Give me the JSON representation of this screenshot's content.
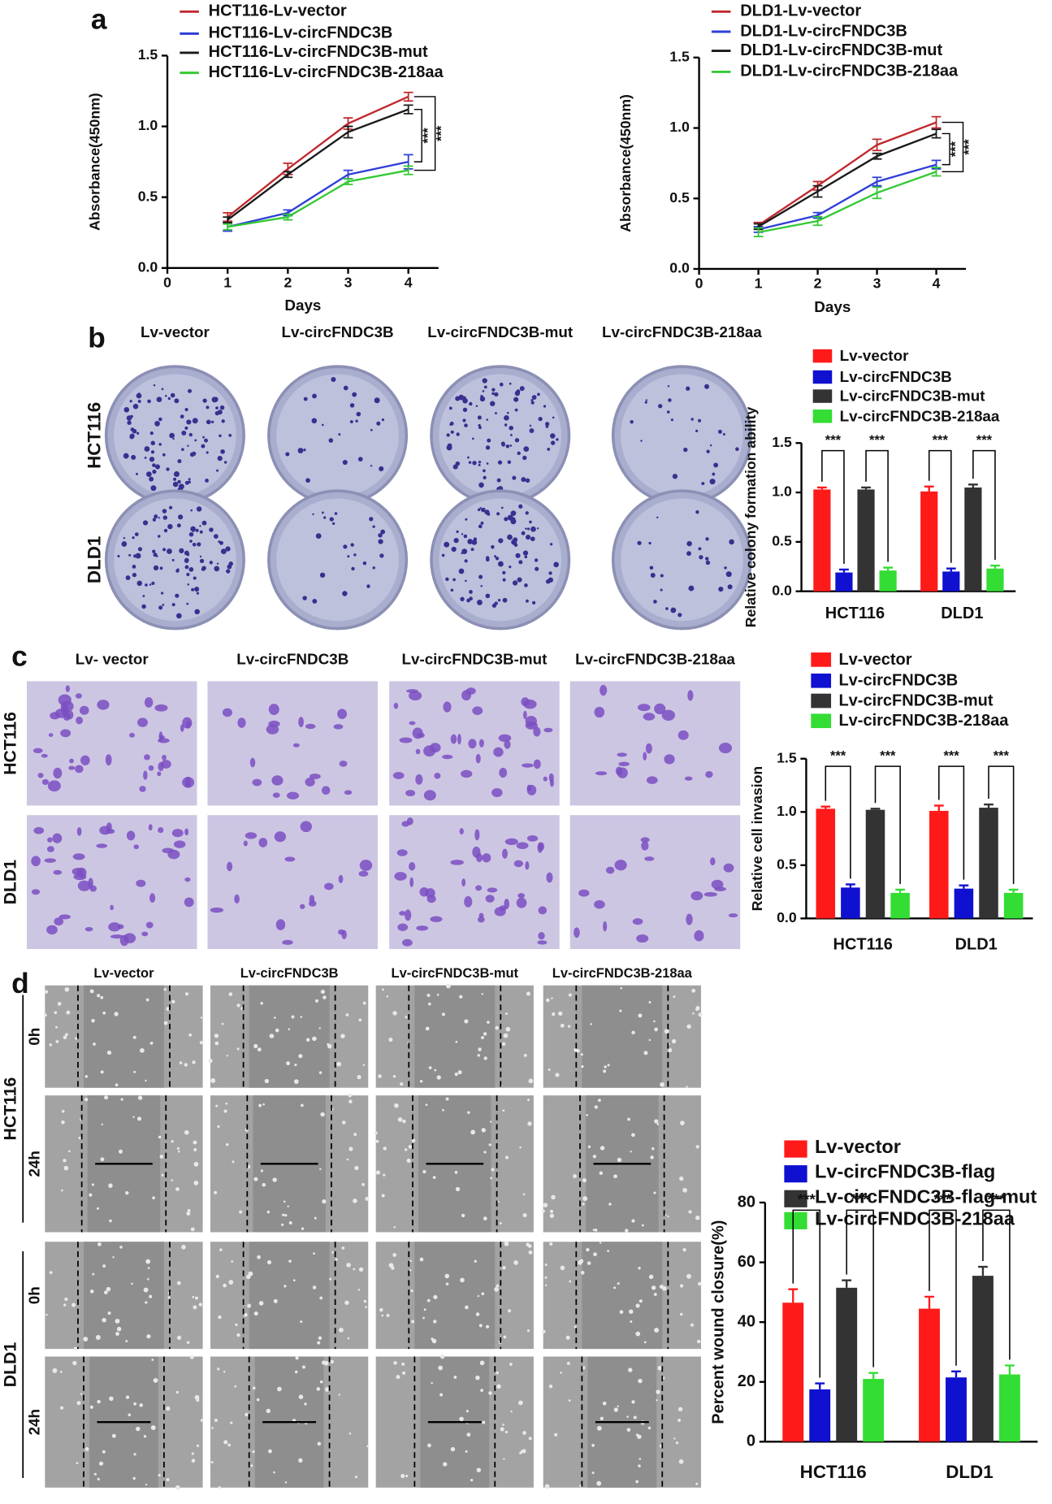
{
  "panel_labels": [
    "a",
    "b",
    "c",
    "d"
  ],
  "images": {
    "b": {
      "columns": [
        "Lv-vector",
        "Lv-circFNDC3B",
        "Lv-circFNDC3B-mut",
        "Lv-circFNDC3B-218aa"
      ],
      "rows": [
        "HCT116",
        "DLD1"
      ]
    },
    "c": {
      "columns": [
        "Lv- vector",
        "Lv-circFNDC3B",
        "Lv-circFNDC3B-mut",
        "Lv-circFNDC3B-218aa"
      ],
      "rows": [
        "HCT116",
        "DLD1"
      ]
    },
    "d": {
      "columns": [
        "Lv-vector",
        "Lv-circFNDC3B",
        "Lv-circFNDC3B-mut",
        "Lv-circFNDC3B-218aa"
      ],
      "rows": [
        "HCT116",
        "DLD1"
      ],
      "times": [
        "0h",
        "24h"
      ]
    }
  },
  "chart_data": [
    {
      "type": "line",
      "xlabel": "Days",
      "ylabel": "Absorbance(450nm)",
      "x": [
        1,
        2,
        3,
        4
      ],
      "xlim": [
        0,
        4.5
      ],
      "xticks": [
        0,
        1,
        2,
        3,
        4
      ],
      "ylim": [
        0,
        1.5
      ],
      "yticks": [
        {
          "value": 0,
          "label": "0.0"
        },
        0.5,
        {
          "value": 1,
          "label": "1.0"
        },
        1.5
      ],
      "series": [
        {
          "name": "HCT116-Lv-vector",
          "color": "#c0282d",
          "values": [
            0.36,
            0.7,
            1.02,
            1.21
          ],
          "errors": [
            0.03,
            0.04,
            0.04,
            0.03
          ]
        },
        {
          "name": "HCT116-Lv-circFNDC3B",
          "color": "#2f3fd8",
          "values": [
            0.29,
            0.39,
            0.66,
            0.75
          ],
          "errors": [
            0.03,
            0.02,
            0.03,
            0.05
          ]
        },
        {
          "name": "HCT116-Lv-circFNDC3B-mut",
          "color": "#1a1a1a",
          "values": [
            0.34,
            0.66,
            0.96,
            1.12
          ],
          "errors": [
            0.02,
            0.02,
            0.04,
            0.03
          ]
        },
        {
          "name": "HCT116-Lv-circFNDC3B-218aa",
          "color": "#34c934",
          "values": [
            0.29,
            0.36,
            0.61,
            0.69
          ],
          "errors": [
            0.02,
            0.02,
            0.02,
            0.03
          ]
        }
      ],
      "significance": [
        "***",
        "***"
      ]
    },
    {
      "type": "line",
      "xlabel": "Days",
      "ylabel": "Absorbance(450nm)",
      "x": [
        1,
        2,
        3,
        4
      ],
      "xlim": [
        0,
        4.5
      ],
      "xticks": [
        0,
        1,
        2,
        3,
        4
      ],
      "ylim": [
        0,
        1.5
      ],
      "yticks": [
        {
          "value": 0,
          "label": "0.0"
        },
        0.5,
        {
          "value": 1,
          "label": "1.0"
        },
        1.5
      ],
      "series": [
        {
          "name": "DLD1-Lv-vector",
          "color": "#c0282d",
          "values": [
            0.31,
            0.59,
            0.88,
            1.04
          ],
          "errors": [
            0.02,
            0.03,
            0.04,
            0.04
          ]
        },
        {
          "name": "DLD1-Lv-circFNDC3B",
          "color": "#2f3fd8",
          "values": [
            0.28,
            0.38,
            0.62,
            0.74
          ],
          "errors": [
            0.02,
            0.02,
            0.03,
            0.03
          ]
        },
        {
          "name": "DLD1-Lv-circFNDC3B-mut",
          "color": "#1a1a1a",
          "values": [
            0.3,
            0.55,
            0.8,
            0.96
          ],
          "errors": [
            0.02,
            0.04,
            0.02,
            0.03
          ]
        },
        {
          "name": "DLD1-Lv-circFNDC3B-218aa",
          "color": "#34c934",
          "values": [
            0.26,
            0.34,
            0.54,
            0.69
          ],
          "errors": [
            0.03,
            0.03,
            0.04,
            0.03
          ]
        }
      ],
      "significance": [
        "***",
        "***"
      ]
    },
    {
      "type": "bar",
      "ylabel": "Relative colony formation ability",
      "categories": [
        "HCT116",
        "DLD1"
      ],
      "ylim": [
        0,
        1.5
      ],
      "yticks": [
        {
          "value": 0,
          "label": "0.0"
        },
        0.5,
        {
          "value": 1,
          "label": "1.0"
        },
        1.5
      ],
      "series": [
        {
          "name": "Lv-vector",
          "color": "#ff1a1a",
          "values": [
            1.03,
            1.01
          ],
          "errors": [
            0.02,
            0.05
          ]
        },
        {
          "name": "Lv-circFNDC3B",
          "color": "#1010d0",
          "values": [
            0.19,
            0.2
          ],
          "errors": [
            0.03,
            0.03
          ]
        },
        {
          "name": "Lv-circFNDC3B-mut",
          "color": "#333333",
          "values": [
            1.03,
            1.05
          ],
          "errors": [
            0.02,
            0.03
          ]
        },
        {
          "name": "Lv-circFNDC3B-218aa",
          "color": "#33dd33",
          "values": [
            0.21,
            0.23
          ],
          "errors": [
            0.03,
            0.03
          ]
        }
      ],
      "significance": [
        "***",
        "***",
        "***",
        "***"
      ]
    },
    {
      "type": "bar",
      "ylabel": "Relative cell invasion",
      "categories": [
        "HCT116",
        "DLD1"
      ],
      "ylim": [
        0,
        1.5
      ],
      "yticks": [
        {
          "value": 0,
          "label": "0.0"
        },
        0.5,
        {
          "value": 1,
          "label": "1.0"
        },
        1.5
      ],
      "series": [
        {
          "name": "Lv-vector",
          "color": "#ff1a1a",
          "values": [
            1.03,
            1.01
          ],
          "errors": [
            0.02,
            0.05
          ]
        },
        {
          "name": "Lv-circFNDC3B",
          "color": "#1010d0",
          "values": [
            0.29,
            0.28
          ],
          "errors": [
            0.03,
            0.03
          ]
        },
        {
          "name": "Lv-circFNDC3B-mut",
          "color": "#333333",
          "values": [
            1.02,
            1.04
          ],
          "errors": [
            0.01,
            0.03
          ]
        },
        {
          "name": "Lv-circFNDC3B-218aa",
          "color": "#33dd33",
          "values": [
            0.24,
            0.24
          ],
          "errors": [
            0.03,
            0.03
          ]
        }
      ],
      "significance": [
        "***",
        "***",
        "***",
        "***"
      ]
    },
    {
      "type": "bar",
      "ylabel": "Percent wound closure(%)",
      "categories": [
        "HCT116",
        "DLD1"
      ],
      "ylim": [
        0,
        80
      ],
      "yticks": [
        0,
        20,
        40,
        60,
        80
      ],
      "series": [
        {
          "name": "Lv-vector",
          "color": "#ff1a1a",
          "values": [
            46.5,
            44.5
          ],
          "errors": [
            4.5,
            4
          ]
        },
        {
          "name": "Lv-circFNDC3B-flag",
          "color": "#1010d0",
          "values": [
            17.5,
            21.5
          ],
          "errors": [
            2,
            2
          ]
        },
        {
          "name": "Lv-circFNDC3B-flag-mut",
          "color": "#333333",
          "values": [
            51.5,
            55.5
          ],
          "errors": [
            2.5,
            3
          ]
        },
        {
          "name": "Lv-circFNDC3B-218aa",
          "color": "#33dd33",
          "values": [
            21,
            22.5
          ],
          "errors": [
            2,
            3
          ]
        }
      ],
      "significance": [
        "***",
        "***",
        "***",
        "***"
      ]
    }
  ]
}
